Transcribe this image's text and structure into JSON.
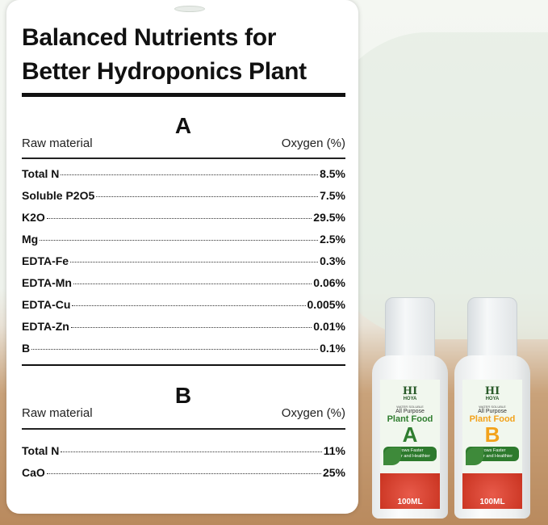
{
  "title_line1": "Balanced Nutrients for",
  "title_line2": "Better Hydroponics Plant",
  "section_a": {
    "heading": "A",
    "col_left": "Raw material",
    "col_right": "Oxygen (%)",
    "rows": [
      {
        "name": "Total N",
        "value": "8.5%"
      },
      {
        "name": "Soluble P2O5",
        "value": "7.5%"
      },
      {
        "name": "K2O",
        "value": "29.5%"
      },
      {
        "name": "Mg",
        "value": "2.5%"
      },
      {
        "name": "EDTA-Fe",
        "value": "0.3%"
      },
      {
        "name": "EDTA-Mn",
        "value": "0.06%"
      },
      {
        "name": "EDTA-Cu",
        "value": "0.005%"
      },
      {
        "name": "EDTA-Zn",
        "value": "0.01%"
      },
      {
        "name": "B",
        "value": "0.1%"
      }
    ]
  },
  "section_b": {
    "heading": "B",
    "col_left": "Raw material",
    "col_right": "Oxygen (%)",
    "rows": [
      {
        "name": "Total N",
        "value": "11%"
      },
      {
        "name": "CaO",
        "value": "25%"
      }
    ]
  },
  "bottles": [
    {
      "brand": "HI",
      "brand_sub": "HOYA",
      "water": "WATER SOLUBLE",
      "purpose": "All Purpose",
      "product": "Plant Food",
      "letter": "A",
      "slogan1": "Grows Faster",
      "slogan2": "Bigger and Healthier",
      "volume": "100ML",
      "color": "#2f7d2f"
    },
    {
      "brand": "HI",
      "brand_sub": "HOYA",
      "water": "WATER SOLUBLE",
      "purpose": "All Purpose",
      "product": "Plant Food",
      "letter": "B",
      "slogan1": "Grows Faster",
      "slogan2": "Bigger and Healthier",
      "volume": "100ML",
      "color": "#f2a21b"
    }
  ]
}
